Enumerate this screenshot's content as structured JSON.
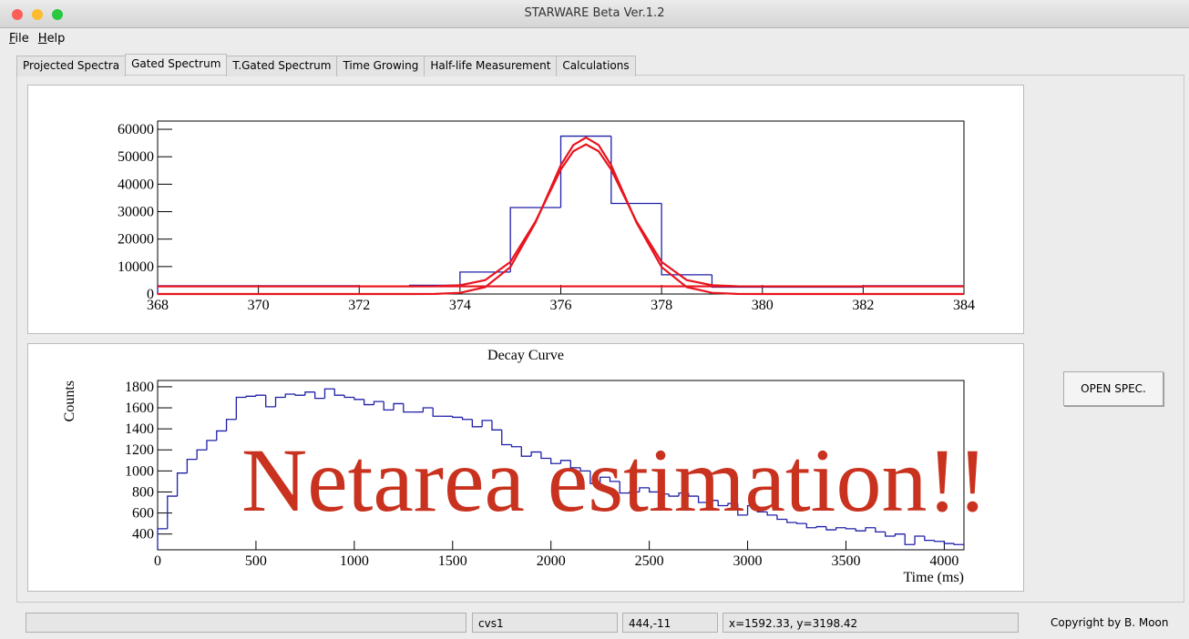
{
  "window": {
    "title": "STARWARE Beta Ver.1.2"
  },
  "menu": [
    "File",
    "Help"
  ],
  "tabs": [
    "Projected Spectra",
    "Gated Spectrum",
    "T.Gated Spectrum",
    "Time Growing",
    "Half-life Measurement",
    "Calculations"
  ],
  "active_tab": 1,
  "chart_data": [
    {
      "type": "histogram",
      "color": "#1f1fa8",
      "bins": [
        368,
        369,
        370,
        371,
        372,
        373,
        374,
        375,
        376,
        377,
        378,
        379,
        380,
        381,
        382,
        383,
        384
      ],
      "values": [
        3000,
        3000,
        3000,
        3000,
        2800,
        3200,
        8000,
        31500,
        57500,
        33000,
        7000,
        2500,
        2500,
        2500,
        3000,
        3000
      ],
      "curves": [
        {
          "color": "#e8141e",
          "x": [
            368,
            372,
            373,
            373.5,
            374,
            374.5,
            375,
            375.5,
            376,
            376.25,
            376.5,
            376.75,
            377,
            377.5,
            378,
            378.5,
            379,
            379.5,
            380,
            384
          ],
          "y": [
            0,
            0,
            4,
            50,
            433,
            2502,
            9804,
            26106,
            46911,
            54264,
            57000,
            54264,
            46911,
            26106,
            9804,
            2502,
            433,
            50,
            4,
            0
          ]
        },
        {
          "color": "#e8141e",
          "x": [
            368,
            372,
            373,
            373.5,
            374,
            374.5,
            375,
            375.5,
            376,
            376.25,
            376.5,
            376.75,
            377,
            377.5,
            378,
            378.5,
            379,
            379.5,
            380,
            384
          ],
          "y": [
            2800,
            2800,
            2804,
            2845,
            3193,
            5070,
            11692,
            26479,
            45349,
            52018,
            54500,
            52018,
            45349,
            26479,
            11692,
            5070,
            3193,
            2845,
            2804,
            2800
          ]
        },
        {
          "color": "#e8141e",
          "x": [
            368,
            384
          ],
          "y": [
            2800,
            2800
          ]
        }
      ],
      "xlim": [
        368,
        384
      ],
      "xticks": [
        368,
        370,
        372,
        374,
        376,
        378,
        380,
        382,
        384
      ],
      "ylim": [
        0,
        63000
      ],
      "yticks": [
        0,
        10000,
        20000,
        30000,
        40000,
        50000,
        60000
      ]
    },
    {
      "type": "histogram",
      "color": "#1f1fa8",
      "title": "Decay Curve",
      "y_label": "Counts",
      "x_label": "Time (ms)",
      "bins": [
        0,
        50,
        100,
        150,
        200,
        250,
        300,
        350,
        400,
        450,
        500,
        550,
        600,
        650,
        700,
        750,
        800,
        850,
        900,
        950,
        1000,
        1050,
        1100,
        1150,
        1200,
        1250,
        1300,
        1350,
        1400,
        1450,
        1500,
        1550,
        1600,
        1650,
        1700,
        1750,
        1800,
        1850,
        1900,
        1950,
        2000,
        2050,
        2100,
        2150,
        2200,
        2250,
        2300,
        2350,
        2400,
        2450,
        2500,
        2550,
        2600,
        2650,
        2700,
        2750,
        2800,
        2850,
        2900,
        2950,
        3000,
        3050,
        3100,
        3150,
        3200,
        3250,
        3300,
        3350,
        3400,
        3450,
        3500,
        3550,
        3600,
        3650,
        3700,
        3750,
        3800,
        3850,
        3900,
        3950,
        4000,
        4050,
        4100
      ],
      "values": [
        450,
        760,
        980,
        1110,
        1200,
        1290,
        1380,
        1490,
        1700,
        1710,
        1720,
        1610,
        1700,
        1730,
        1720,
        1750,
        1690,
        1780,
        1720,
        1700,
        1680,
        1630,
        1660,
        1580,
        1640,
        1560,
        1560,
        1600,
        1520,
        1520,
        1510,
        1490,
        1420,
        1480,
        1390,
        1250,
        1230,
        1140,
        1180,
        1120,
        1070,
        1100,
        1030,
        1000,
        880,
        940,
        900,
        790,
        800,
        840,
        800,
        780,
        760,
        790,
        760,
        700,
        720,
        670,
        690,
        580,
        670,
        610,
        580,
        540,
        510,
        500,
        460,
        470,
        440,
        460,
        450,
        430,
        460,
        420,
        380,
        400,
        300,
        380,
        340,
        330,
        310,
        300
      ],
      "xlim": [
        0,
        4100
      ],
      "xticks": [
        0,
        500,
        1000,
        1500,
        2000,
        2500,
        3000,
        3500,
        4000
      ],
      "ylim": [
        250,
        1860
      ],
      "yticks": [
        400,
        600,
        800,
        1000,
        1200,
        1400,
        1600,
        1800
      ]
    }
  ],
  "overlay": "Netarea estimation!!",
  "button": "OPEN SPEC.",
  "status_bar": [
    "cvs1",
    "444,-11",
    "x=1592.33, y=3198.42"
  ],
  "copyright": "Copyright by B. Moon"
}
